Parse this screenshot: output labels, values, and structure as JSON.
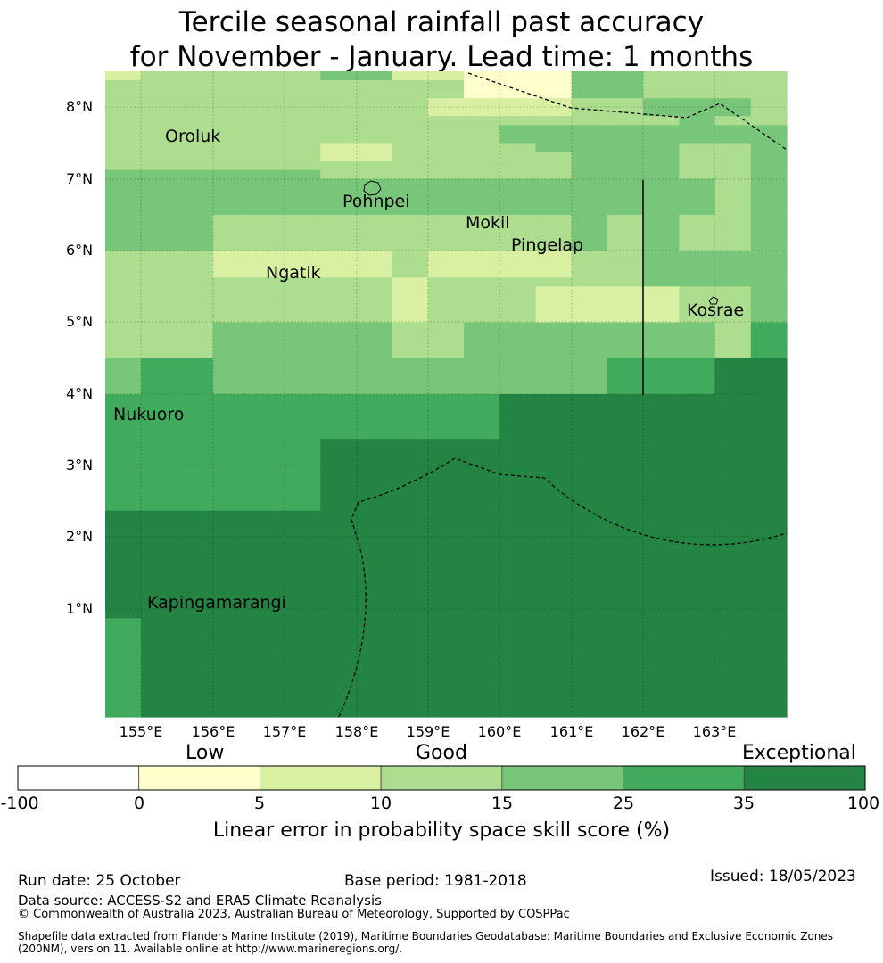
{
  "title": {
    "line1": "Tercile seasonal rainfall past accuracy",
    "line2": "for November - January. Lead time: 1 months"
  },
  "map": {
    "lat_labels": [
      "8°N",
      "7°N",
      "6°N",
      "5°N",
      "4°N",
      "3°N",
      "2°N",
      "1°N"
    ],
    "lon_labels": [
      "155°E",
      "156°E",
      "157°E",
      "158°E",
      "159°E",
      "160°E",
      "161°E",
      "162°E",
      "163°E"
    ],
    "places": [
      "Oroluk",
      "Pohnpei",
      "Mokil",
      "Pingelap",
      "Ngatik",
      "Kosrae",
      "Nukuoro",
      "Kapingamarangi"
    ],
    "class_colors": [
      "#ffffff",
      "#ffffcc",
      "#d9f0a3",
      "#addd8e",
      "#78c679",
      "#41ab5d",
      "#238443"
    ],
    "grid": [
      "2333334422111443333",
      "3333333333111443333",
      "3333333333111443333",
      "3333333332222334443",
      "3333333332222334443",
      "3333333333333333433",
      "3333333333344444444",
      "3333333333344444444",
      "3333332233334444334",
      "3333332233333444334",
      "3333333333333444334",
      "4444443333333444334",
      "4444444444444444434",
      "4444444444444444434",
      "4444444444444444434",
      "4444444444444444434",
      "4443333333333434334",
      "4443333333333434334",
      "4443333333333434334",
      "4443333333333434334",
      "3332222232222334444",
      "3332222232222334444",
      "3332222232222334444",
      "3333333323333334444",
      "3333333323332222334",
      "3333333323332222334",
      "3333333323332222334",
      "3333333323332222334",
      "3334444433444444435",
      "3334444433444444435",
      "3334444433444444435",
      "3334444433444444435",
      "4554444444444455566",
      "4554444444444455566",
      "4554444444444455566",
      "4554444444444455566",
      "5555555555566666666",
      "5555555555566666666",
      "5555555555566666666",
      "5555555555566666666",
      "5555555555566666666",
      "5555556666666666666",
      "5555556666666666666",
      "5555556666666666666",
      "5555556666666666666",
      "5555556666666666666",
      "5555556666666666666",
      "5555556666666666666",
      "5555556666666666666",
      "6666666666666666666",
      "6666666666666666666",
      "6666666666666666666",
      "6666666666666666666",
      "6666666666666666666",
      "6666666666666666666",
      "6666666666666666666",
      "6666666666666666666",
      "6666666666666666666",
      "6666666666666666666",
      "6666666666666666666",
      "6666666666666666666",
      "5666666666666666666",
      "5666666666666666666",
      "5666666666666666666",
      "5666666666666666666",
      "5666666666666666666",
      "5666666666666666666",
      "5666666666666666666",
      "5666666666666666666",
      "5666666666666666666",
      "5666666666666666666",
      "5666666666666666666"
    ]
  },
  "colorbar": {
    "categories": [
      "Low",
      "Good",
      "Exceptional"
    ],
    "ticks": [
      "-100",
      "0",
      "5",
      "10",
      "15",
      "25",
      "35",
      "100"
    ],
    "colors": [
      "#ffffff",
      "#ffffcc",
      "#d9f0a3",
      "#addd8e",
      "#78c679",
      "#41ab5d",
      "#238443"
    ],
    "label": "Linear error in probability space skill score (%)"
  },
  "footer": {
    "run_date": "Run date: 25 October",
    "base_period": "Base period: 1981-2018",
    "issued": "Issued: 18/05/2023",
    "data_source": "Data source: ACCESS-S2 and ERA5 Climate Reanalysis",
    "copyright": "© Commonwealth of Australia 2023, Australian Bureau of Meteorology, Supported by COSPPac",
    "shapefile_line1": "Shapefile data extracted from Flanders Marine Institute (2019), Maritime Boundaries Geodatabase: Maritime Boundaries and Exclusive Economic Zones",
    "shapefile_line2": "(200NM), version 11. Available online at http://www.marineregions.org/."
  }
}
